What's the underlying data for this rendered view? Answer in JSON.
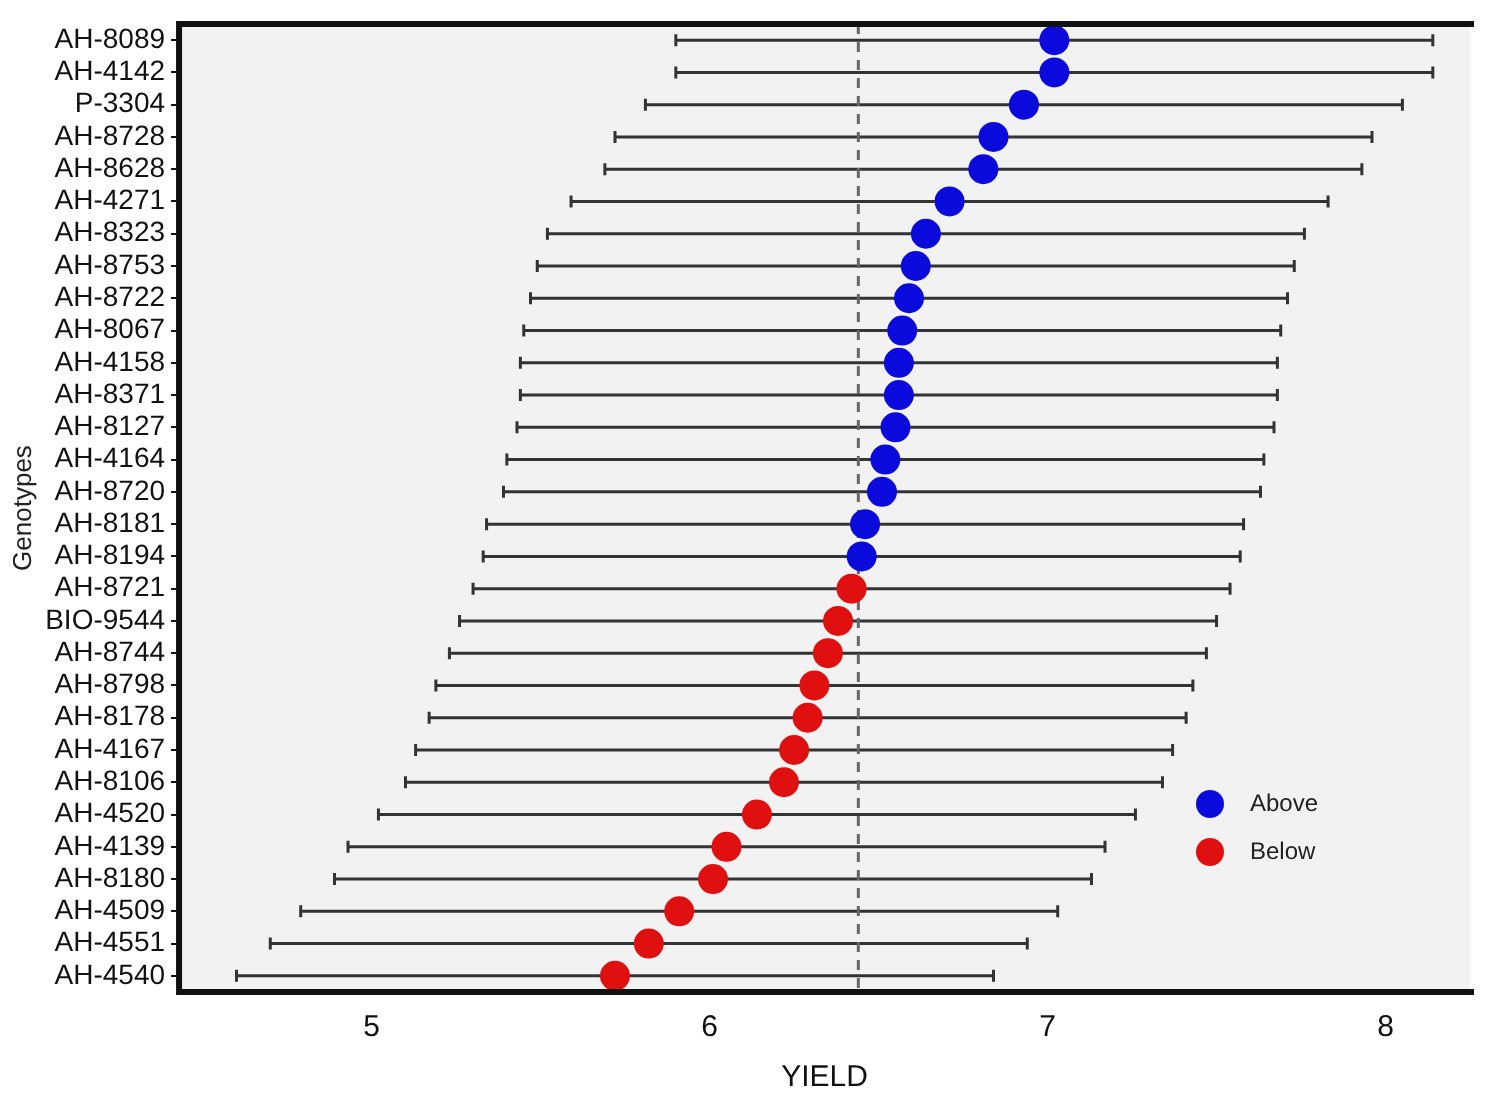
{
  "chart_data": {
    "type": "scatter",
    "orientation": "horizontal",
    "xlabel": "YIELD",
    "ylabel": "Genotypes",
    "categories": [
      "AH-8089",
      "AH-4142",
      "P-3304",
      "AH-8728",
      "AH-8628",
      "AH-4271",
      "AH-8323",
      "AH-8753",
      "AH-8722",
      "AH-8067",
      "AH-4158",
      "AH-8371",
      "AH-8127",
      "AH-4164",
      "AH-8720",
      "AH-8181",
      "AH-8194",
      "AH-8721",
      "BIO-9544",
      "AH-8744",
      "AH-8798",
      "AH-8178",
      "AH-4167",
      "AH-8106",
      "AH-4520",
      "AH-4139",
      "AH-8180",
      "AH-4509",
      "AH-4551",
      "AH-4540"
    ],
    "series": [
      {
        "name": "Above",
        "color": "#0a0adc",
        "values": [
          7.02,
          7.02,
          6.93,
          6.84,
          6.81,
          6.71,
          6.64,
          6.61,
          6.59,
          6.57,
          6.56,
          6.56,
          6.55,
          6.52,
          6.51,
          6.46,
          6.45,
          null,
          null,
          null,
          null,
          null,
          null,
          null,
          null,
          null,
          null,
          null,
          null,
          null
        ],
        "errors": [
          1.12,
          1.12,
          1.12,
          1.12,
          1.12,
          1.12,
          1.12,
          1.12,
          1.12,
          1.12,
          1.12,
          1.12,
          1.12,
          1.12,
          1.12,
          1.12,
          1.12,
          null,
          null,
          null,
          null,
          null,
          null,
          null,
          null,
          null,
          null,
          null,
          null,
          null
        ]
      },
      {
        "name": "Below",
        "color": "#e01010",
        "values": [
          null,
          null,
          null,
          null,
          null,
          null,
          null,
          null,
          null,
          null,
          null,
          null,
          null,
          null,
          null,
          null,
          null,
          6.42,
          6.38,
          6.35,
          6.31,
          6.29,
          6.25,
          6.22,
          6.14,
          6.05,
          6.01,
          5.91,
          5.82,
          5.72
        ],
        "errors": [
          null,
          null,
          null,
          null,
          null,
          null,
          null,
          null,
          null,
          null,
          null,
          null,
          null,
          null,
          null,
          null,
          null,
          1.12,
          1.12,
          1.12,
          1.12,
          1.12,
          1.12,
          1.12,
          1.12,
          1.12,
          1.12,
          1.12,
          1.12,
          1.12
        ]
      }
    ],
    "xlim": [
      4.43,
      8.25
    ],
    "xticks": [
      5,
      6,
      7,
      8
    ],
    "ref_lines": [
      {
        "axis": "x",
        "value": 6.44,
        "line_style": "dashed",
        "color": "#666666"
      }
    ],
    "legend": "bottom right",
    "marker": "circle",
    "grid": false
  }
}
